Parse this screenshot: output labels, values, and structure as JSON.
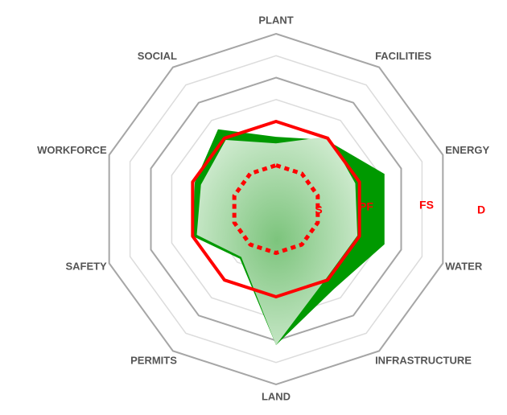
{
  "chart_data": {
    "type": "radar",
    "categories": [
      "PLANT",
      "FACILITIES",
      "ENERGY",
      "WATER",
      "INFRASTRUCTURE",
      "LAND",
      "PERMITS",
      "SAFETY",
      "WORKFORCE",
      "SOCIAL"
    ],
    "rlim": [
      0,
      8
    ],
    "rticks": [
      1,
      2,
      3,
      4,
      5,
      6,
      7,
      8
    ],
    "grid": true,
    "series": [
      {
        "color": "#009900",
        "fill": true,
        "values": [
          3.3,
          3.9,
          5.2,
          5.2,
          4.5,
          6.2,
          2.8,
          4,
          3.9,
          4.5
        ]
      },
      {
        "color": "#b4dcb4",
        "fill": true,
        "values": [
          3,
          4.1,
          3.8,
          3.9,
          3.9,
          6.2,
          2.7,
          3.8,
          3.6,
          3.9
        ]
      },
      {
        "color": "#ff0000",
        "fill": false,
        "values": [
          4,
          4,
          4,
          4,
          4,
          4,
          4,
          4,
          4,
          4
        ]
      },
      {
        "color": "#ff0000",
        "fill": false,
        "dashed": true,
        "values": [
          2,
          2,
          2,
          2,
          2,
          2,
          2,
          2,
          2,
          2
        ]
      }
    ],
    "annotations": [
      "S",
      "PF",
      "FS",
      "D"
    ]
  }
}
